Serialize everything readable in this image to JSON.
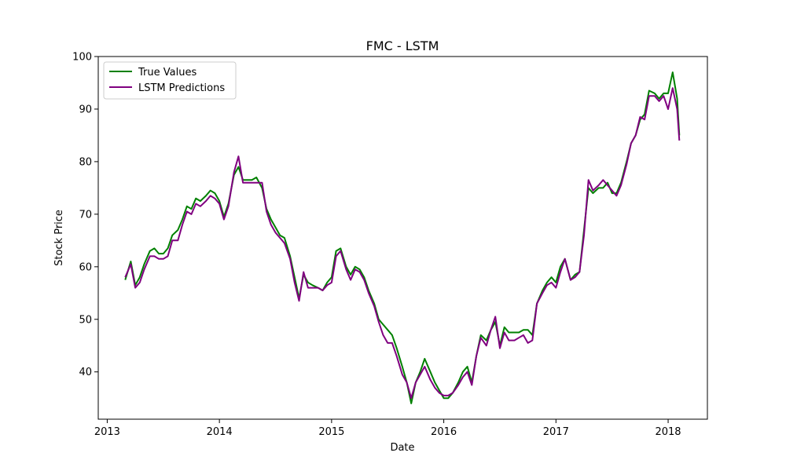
{
  "chart_data": {
    "type": "line",
    "title": "FMC - LSTM",
    "xlabel": "Date",
    "ylabel": "Stock Price",
    "xlim": [
      2012.92,
      2018.35
    ],
    "ylim": [
      31,
      100
    ],
    "xticks": [
      2013,
      2014,
      2015,
      2016,
      2017,
      2018
    ],
    "xtick_labels": [
      "2013",
      "2014",
      "2015",
      "2016",
      "2017",
      "2018"
    ],
    "yticks": [
      40,
      50,
      60,
      70,
      80,
      90,
      100
    ],
    "ytick_labels": [
      "40",
      "50",
      "60",
      "70",
      "80",
      "90",
      "100"
    ],
    "grid": false,
    "legend_position": "upper-left",
    "series": [
      {
        "name": "True Values",
        "color": "#008000",
        "x": [
          2013.16,
          2013.21,
          2013.25,
          2013.29,
          2013.33,
          2013.38,
          2013.42,
          2013.46,
          2013.5,
          2013.54,
          2013.58,
          2013.63,
          2013.67,
          2013.71,
          2013.75,
          2013.79,
          2013.83,
          2013.88,
          2013.92,
          2013.96,
          2014.0,
          2014.04,
          2014.08,
          2014.13,
          2014.17,
          2014.21,
          2014.25,
          2014.29,
          2014.33,
          2014.38,
          2014.42,
          2014.46,
          2014.5,
          2014.54,
          2014.58,
          2014.63,
          2014.67,
          2014.71,
          2014.75,
          2014.79,
          2014.83,
          2014.88,
          2014.92,
          2014.96,
          2015.0,
          2015.04,
          2015.08,
          2015.13,
          2015.17,
          2015.21,
          2015.25,
          2015.29,
          2015.33,
          2015.38,
          2015.42,
          2015.46,
          2015.5,
          2015.54,
          2015.58,
          2015.63,
          2015.67,
          2015.71,
          2015.75,
          2015.79,
          2015.83,
          2015.88,
          2015.92,
          2015.96,
          2016.0,
          2016.04,
          2016.08,
          2016.13,
          2016.17,
          2016.21,
          2016.25,
          2016.29,
          2016.33,
          2016.38,
          2016.42,
          2016.46,
          2016.5,
          2016.54,
          2016.58,
          2016.63,
          2016.67,
          2016.71,
          2016.75,
          2016.79,
          2016.83,
          2016.88,
          2016.92,
          2016.96,
          2017.0,
          2017.04,
          2017.08,
          2017.13,
          2017.17,
          2017.21,
          2017.25,
          2017.29,
          2017.33,
          2017.38,
          2017.42,
          2017.46,
          2017.5,
          2017.54,
          2017.58,
          2017.63,
          2017.67,
          2017.71,
          2017.75,
          2017.79,
          2017.83,
          2017.88,
          2017.92,
          2017.96,
          2018.0,
          2018.04,
          2018.08,
          2018.1
        ],
        "values": [
          57.5,
          61,
          56.5,
          58,
          60.5,
          63,
          63.5,
          62.5,
          62.5,
          63.5,
          66,
          67,
          69,
          71.5,
          71,
          73,
          72.5,
          73.5,
          74.5,
          74,
          72.5,
          69.5,
          72,
          77.5,
          79,
          76.5,
          76.5,
          76.5,
          77,
          75,
          71,
          69,
          67.5,
          66,
          65.5,
          62,
          58,
          54,
          58.5,
          57,
          56.5,
          56,
          55.5,
          57,
          58,
          63,
          63.5,
          60,
          58.5,
          60,
          59.5,
          58,
          55.5,
          53,
          50,
          49,
          48,
          47,
          44.5,
          41,
          38,
          34,
          38,
          40,
          42.5,
          40,
          38,
          36.5,
          35,
          35,
          36,
          38,
          40,
          41,
          38,
          43,
          47,
          46,
          48,
          49.5,
          45,
          48.5,
          47.5,
          47.5,
          47.5,
          48,
          48,
          47,
          53,
          55.5,
          57,
          58,
          57,
          60,
          61.5,
          57.5,
          58.5,
          59,
          67,
          75,
          74,
          75,
          75,
          76,
          74,
          74,
          76,
          80,
          83.5,
          85,
          88,
          89,
          93.5,
          93,
          92,
          93,
          93,
          97,
          92,
          85
        ]
      },
      {
        "name": "LSTM Predictions",
        "color": "#800080",
        "x": [
          2013.16,
          2013.21,
          2013.25,
          2013.29,
          2013.33,
          2013.38,
          2013.42,
          2013.46,
          2013.5,
          2013.54,
          2013.58,
          2013.63,
          2013.67,
          2013.71,
          2013.75,
          2013.79,
          2013.83,
          2013.88,
          2013.92,
          2013.96,
          2014.0,
          2014.04,
          2014.08,
          2014.13,
          2014.17,
          2014.21,
          2014.25,
          2014.29,
          2014.33,
          2014.38,
          2014.42,
          2014.46,
          2014.5,
          2014.54,
          2014.58,
          2014.63,
          2014.67,
          2014.71,
          2014.75,
          2014.79,
          2014.83,
          2014.88,
          2014.92,
          2014.96,
          2015.0,
          2015.04,
          2015.08,
          2015.13,
          2015.17,
          2015.21,
          2015.25,
          2015.29,
          2015.33,
          2015.38,
          2015.42,
          2015.46,
          2015.5,
          2015.54,
          2015.58,
          2015.63,
          2015.67,
          2015.71,
          2015.75,
          2015.79,
          2015.83,
          2015.88,
          2015.92,
          2015.96,
          2016.0,
          2016.04,
          2016.08,
          2016.13,
          2016.17,
          2016.21,
          2016.25,
          2016.29,
          2016.33,
          2016.38,
          2016.42,
          2016.46,
          2016.5,
          2016.54,
          2016.58,
          2016.63,
          2016.67,
          2016.71,
          2016.75,
          2016.79,
          2016.83,
          2016.88,
          2016.92,
          2016.96,
          2017.0,
          2017.04,
          2017.08,
          2017.13,
          2017.17,
          2017.21,
          2017.25,
          2017.29,
          2017.33,
          2017.38,
          2017.42,
          2017.46,
          2017.5,
          2017.54,
          2017.58,
          2017.63,
          2017.67,
          2017.71,
          2017.75,
          2017.79,
          2017.83,
          2017.88,
          2017.92,
          2017.96,
          2018.0,
          2018.04,
          2018.08,
          2018.1
        ],
        "values": [
          58,
          60.5,
          56,
          57,
          59.5,
          62,
          62,
          61.5,
          61.5,
          62,
          65,
          65,
          68,
          70.5,
          70,
          72,
          71.5,
          72.5,
          73.5,
          73,
          72,
          69,
          71.5,
          78,
          81,
          76,
          76,
          76,
          76,
          76,
          70.5,
          68,
          66.5,
          65.5,
          64.5,
          61.5,
          57,
          53.5,
          59,
          56,
          56,
          56,
          55.5,
          56.5,
          57,
          62,
          63,
          59.5,
          57.5,
          59.5,
          59,
          57.5,
          55,
          52.5,
          49.5,
          47,
          45.5,
          45.5,
          43,
          39.5,
          38,
          35,
          38,
          39.5,
          41,
          38.5,
          37,
          36,
          35.5,
          35.5,
          36,
          37.5,
          39,
          40,
          37.5,
          43,
          46.5,
          45,
          48,
          50.5,
          44.5,
          47.5,
          46,
          46,
          46.5,
          47,
          45.5,
          46,
          53,
          55,
          56.5,
          57,
          56,
          59,
          61.5,
          57.5,
          58,
          59,
          66,
          76.5,
          74.5,
          75.5,
          76.5,
          75.5,
          74.5,
          73.5,
          75.5,
          79.5,
          83.5,
          85,
          88.5,
          88,
          92.5,
          92.5,
          91.5,
          92.5,
          90,
          94,
          90,
          84
        ]
      }
    ]
  }
}
